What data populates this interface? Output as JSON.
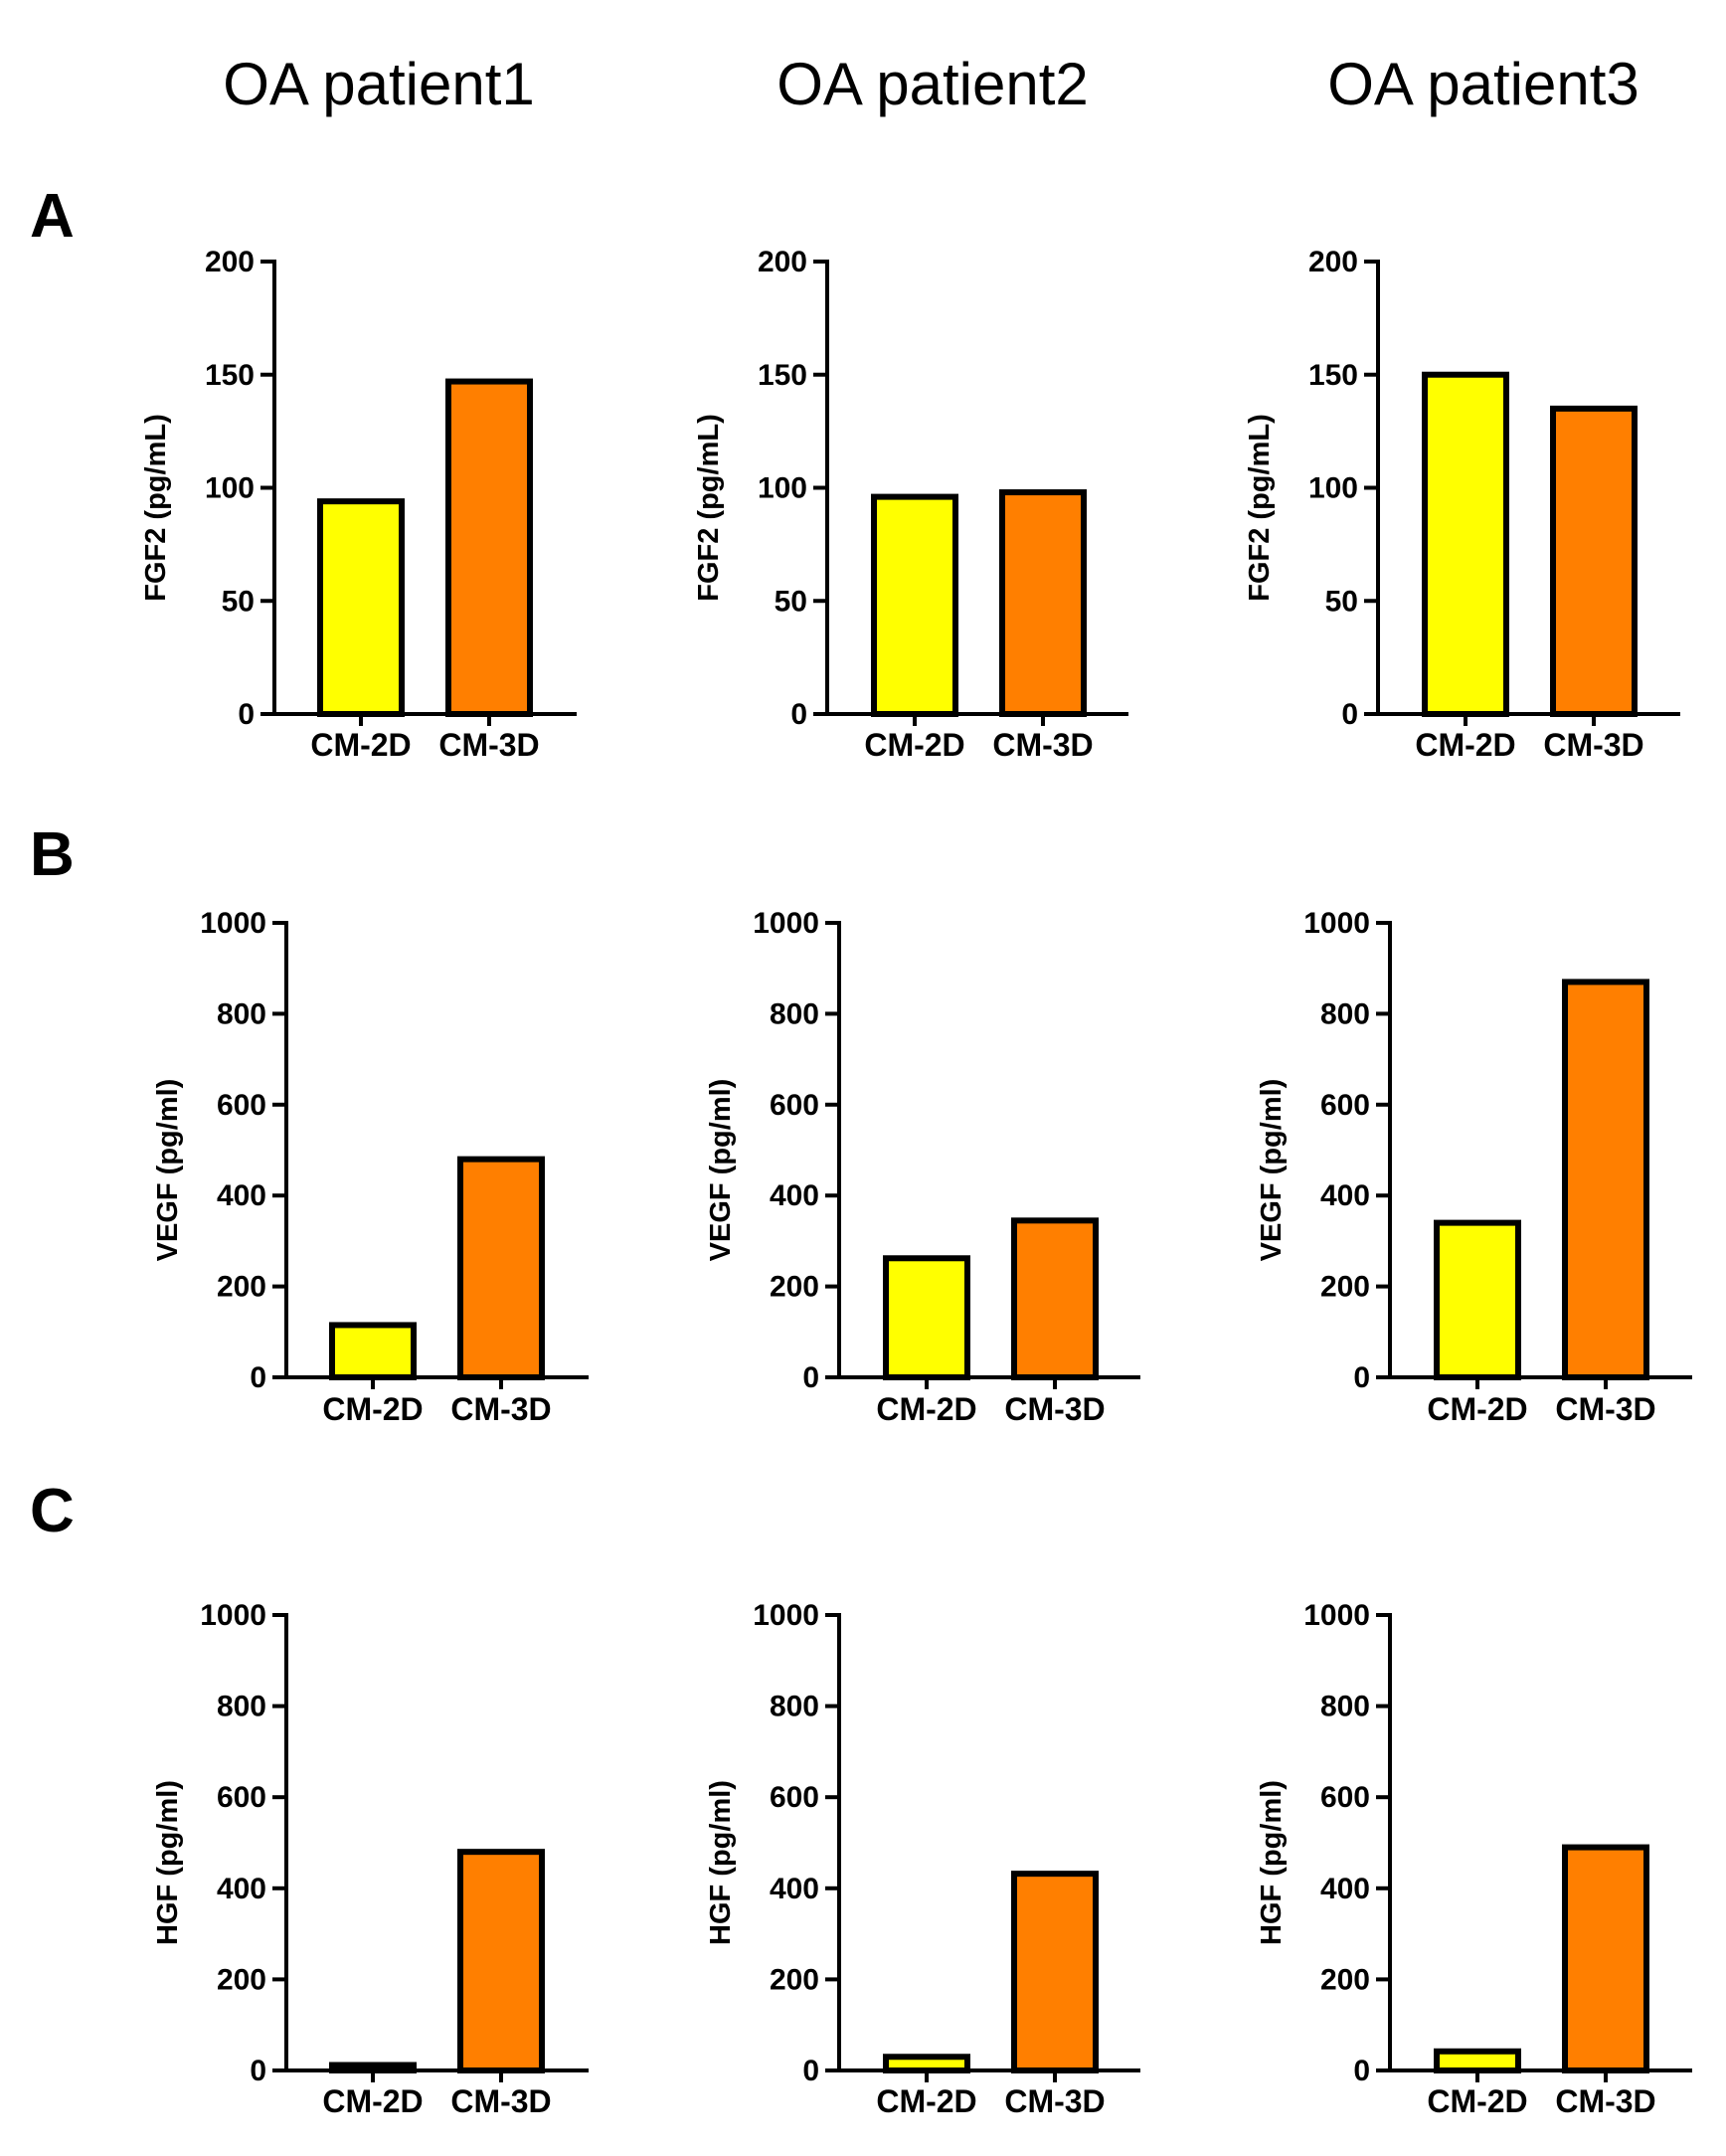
{
  "columns": [
    "OA patient1",
    "OA patient2",
    "OA patient3"
  ],
  "rows": [
    "A",
    "B",
    "C"
  ],
  "colors": {
    "CM-2D": "#ffff00",
    "CM-3D": "#ff7f00",
    "outline": "#000000"
  },
  "chart_data": [
    {
      "type": "bar",
      "panel": "A",
      "title": "OA patient1",
      "ylabel": "FGF2 (pg/mL)",
      "categories": [
        "CM-2D",
        "CM-3D"
      ],
      "values": [
        94,
        147
      ],
      "ylim": [
        0,
        200
      ],
      "yticks": [
        0,
        50,
        100,
        150,
        200
      ]
    },
    {
      "type": "bar",
      "panel": "A",
      "title": "OA patient2",
      "ylabel": "FGF2 (pg/mL)",
      "categories": [
        "CM-2D",
        "CM-3D"
      ],
      "values": [
        96,
        98
      ],
      "ylim": [
        0,
        200
      ],
      "yticks": [
        0,
        50,
        100,
        150,
        200
      ]
    },
    {
      "type": "bar",
      "panel": "A",
      "title": "OA patient3",
      "ylabel": "FGF2 (pg/mL)",
      "categories": [
        "CM-2D",
        "CM-3D"
      ],
      "values": [
        150,
        135
      ],
      "ylim": [
        0,
        200
      ],
      "yticks": [
        0,
        50,
        100,
        150,
        200
      ]
    },
    {
      "type": "bar",
      "panel": "B",
      "title": "OA patient1",
      "ylabel": "VEGF (pg/ml)",
      "categories": [
        "CM-2D",
        "CM-3D"
      ],
      "values": [
        115,
        480
      ],
      "ylim": [
        0,
        1000
      ],
      "yticks": [
        0,
        200,
        400,
        600,
        800,
        1000
      ]
    },
    {
      "type": "bar",
      "panel": "B",
      "title": "OA patient2",
      "ylabel": "VEGF (pg/ml)",
      "categories": [
        "CM-2D",
        "CM-3D"
      ],
      "values": [
        262,
        345
      ],
      "ylim": [
        0,
        1000
      ],
      "yticks": [
        0,
        200,
        400,
        600,
        800,
        1000
      ]
    },
    {
      "type": "bar",
      "panel": "B",
      "title": "OA patient3",
      "ylabel": "VEGF (pg/ml)",
      "categories": [
        "CM-2D",
        "CM-3D"
      ],
      "values": [
        340,
        870
      ],
      "ylim": [
        0,
        1000
      ],
      "yticks": [
        0,
        200,
        400,
        600,
        800,
        1000
      ]
    },
    {
      "type": "bar",
      "panel": "C",
      "title": "OA patient1",
      "ylabel": "HGF (pg/ml)",
      "categories": [
        "CM-2D",
        "CM-3D"
      ],
      "values": [
        12,
        480
      ],
      "ylim": [
        0,
        1000
      ],
      "yticks": [
        0,
        200,
        400,
        600,
        800,
        1000
      ]
    },
    {
      "type": "bar",
      "panel": "C",
      "title": "OA patient2",
      "ylabel": "HGF (pg/ml)",
      "categories": [
        "CM-2D",
        "CM-3D"
      ],
      "values": [
        30,
        432
      ],
      "ylim": [
        0,
        1000
      ],
      "yticks": [
        0,
        200,
        400,
        600,
        800,
        1000
      ]
    },
    {
      "type": "bar",
      "panel": "C",
      "title": "OA patient3",
      "ylabel": "HGF (pg/ml)",
      "categories": [
        "CM-2D",
        "CM-3D"
      ],
      "values": [
        42,
        490
      ],
      "ylim": [
        0,
        1000
      ],
      "yticks": [
        0,
        200,
        400,
        600,
        800,
        1000
      ]
    }
  ]
}
